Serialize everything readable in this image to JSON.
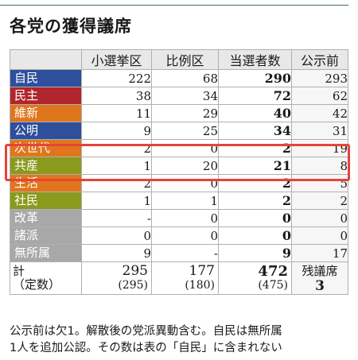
{
  "title": "各党の獲得議席",
  "columns": [
    "小選挙区",
    "比例区",
    "当選者数",
    "公示前"
  ],
  "parties": [
    {
      "name": "自民",
      "color": "#2d4f9c",
      "single": "222",
      "pr": "68",
      "elected": "290",
      "prev": "293"
    },
    {
      "name": "民主",
      "color": "#b0262d",
      "single": "38",
      "pr": "34",
      "elected": "72",
      "prev": "62"
    },
    {
      "name": "維新",
      "color": "#e0761c",
      "single": "11",
      "pr": "29",
      "elected": "40",
      "prev": "42"
    },
    {
      "name": "公明",
      "color": "#2d4f9c",
      "single": "9",
      "pr": "25",
      "elected": "34",
      "prev": "31"
    },
    {
      "name": "次世代",
      "color": "#e0761c",
      "single": "2",
      "pr": "0",
      "elected": "2",
      "prev": "19"
    },
    {
      "name": "共産",
      "color": "#8a9a1c",
      "single": "1",
      "pr": "20",
      "elected": "21",
      "prev": "8"
    },
    {
      "name": "生活",
      "color": "#e0761c",
      "single": "2",
      "pr": "0",
      "elected": "2",
      "prev": "5"
    },
    {
      "name": "社民",
      "color": "#8a9a1c",
      "single": "1",
      "pr": "1",
      "elected": "2",
      "prev": "2"
    },
    {
      "name": "改革",
      "color": "#a8a8a8",
      "single": "-",
      "pr": "0",
      "elected": "0",
      "prev": "0"
    },
    {
      "name": "諸派",
      "color": "#a8a8a8",
      "single": "0",
      "pr": "0",
      "elected": "0",
      "prev": "0"
    },
    {
      "name": "無所属",
      "color": "#a8a8a8",
      "single": "9",
      "pr": "-",
      "elected": "9",
      "prev": "17"
    }
  ],
  "total": {
    "label": "計",
    "sublabel": "（定数）",
    "single": "295",
    "single_sub": "(295)",
    "pr": "177",
    "pr_sub": "(180)",
    "elected": "472",
    "elected_sub": "(475)",
    "remaining_label": "残議席",
    "remaining_value": "3"
  },
  "note": {
    "line1": "公示前は欠1。解散後の党派異動含む。自民は無所属",
    "line2": "1人を追加公認。その数は表の「自民」に含まれない"
  },
  "highlight_color": "#e6433b"
}
